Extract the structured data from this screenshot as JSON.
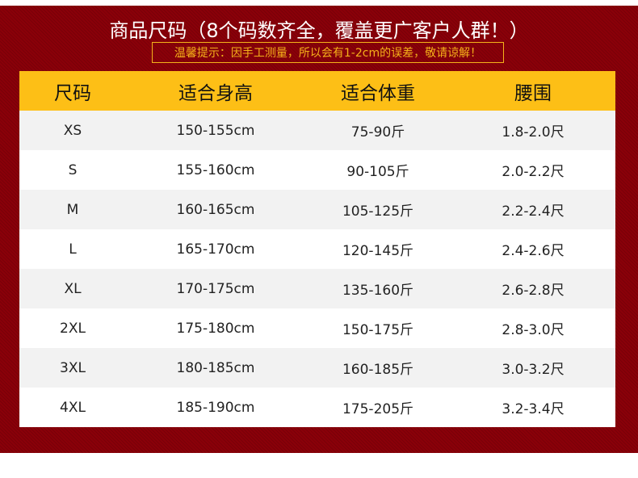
{
  "title": "商品尺码（8个码数齐全，覆盖更广客户人群！）",
  "notice": "温馨提示：因手工测量，所以会有1-2cm的误差，敬请谅解！",
  "colors": {
    "background": "#8a0009",
    "header": "#fdbf16",
    "notice": "#f5b21a"
  },
  "table": {
    "headers": [
      "尺码",
      "适合身高",
      "适合体重",
      "腰围"
    ],
    "rows": [
      [
        "XS",
        "150-155cm",
        "75-90斤",
        "1.8-2.0尺"
      ],
      [
        "S",
        "155-160cm",
        "90-105斤",
        "2.0-2.2尺"
      ],
      [
        "M",
        "160-165cm",
        "105-125斤",
        "2.2-2.4尺"
      ],
      [
        "L",
        "165-170cm",
        "120-145斤",
        "2.4-2.6尺"
      ],
      [
        "XL",
        "170-175cm",
        "135-160斤",
        "2.6-2.8尺"
      ],
      [
        "2XL",
        "175-180cm",
        "150-175斤",
        "2.8-3.0尺"
      ],
      [
        "3XL",
        "180-185cm",
        "160-185斤",
        "3.0-3.2尺"
      ],
      [
        "4XL",
        "185-190cm",
        "175-205斤",
        "3.2-3.4尺"
      ]
    ]
  }
}
